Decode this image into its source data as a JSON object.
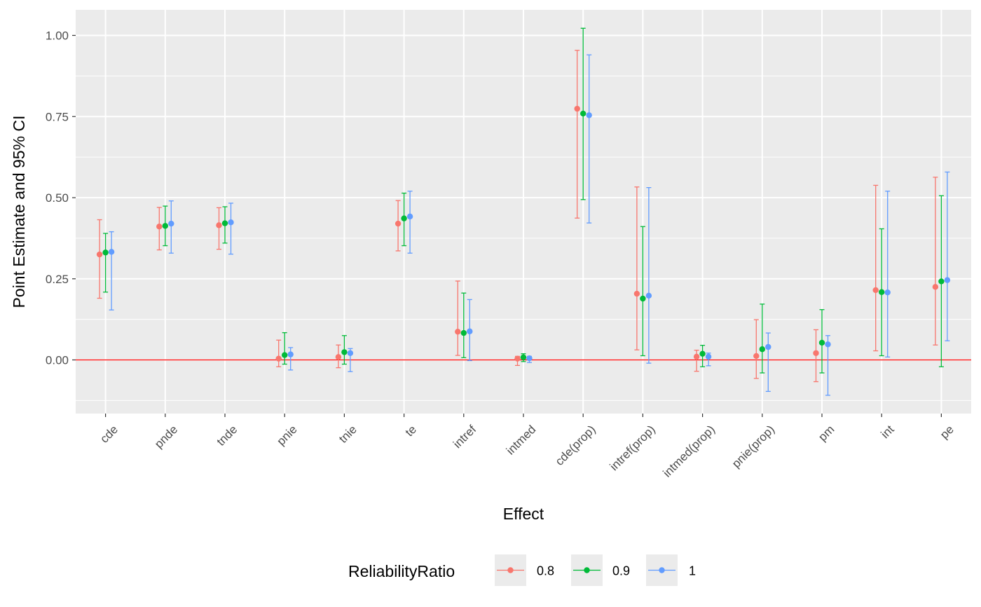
{
  "chart_data": {
    "type": "scatter",
    "subtype": "point-errorbar",
    "xlabel": "Effect",
    "ylabel": "Point Estimate and 95% CI",
    "categories": [
      "cde",
      "pnde",
      "tnde",
      "pnie",
      "tnie",
      "te",
      "intref",
      "intmed",
      "cde(prop)",
      "intref(prop)",
      "intmed(prop)",
      "pnie(prop)",
      "pm",
      "int",
      "pe"
    ],
    "ylim": [
      -0.16,
      1.08
    ],
    "yticks": [
      0.0,
      0.25,
      0.5,
      0.75,
      1.0
    ],
    "ytick_labels": [
      "0.00",
      "0.25",
      "0.50",
      "0.75",
      "1.00"
    ],
    "reference_line": {
      "y": 0,
      "color": "#ff0000"
    },
    "grid": true,
    "panel_background": "#ebebeb",
    "legend": {
      "title": "ReliabilityRatio",
      "position": "bottom"
    },
    "series": [
      {
        "name": "0.8",
        "color": "#f8766d",
        "estimate": [
          0.325,
          0.411,
          0.415,
          0.004,
          0.009,
          0.42,
          0.087,
          0.004,
          0.774,
          0.204,
          0.01,
          0.012,
          0.021,
          0.215,
          0.225
        ],
        "lower": [
          0.19,
          0.339,
          0.341,
          -0.021,
          -0.024,
          0.336,
          0.014,
          -0.017,
          0.437,
          0.031,
          -0.035,
          -0.057,
          -0.067,
          0.028,
          0.046
        ],
        "upper": [
          0.432,
          0.47,
          0.469,
          0.061,
          0.046,
          0.491,
          0.243,
          0.011,
          0.954,
          0.533,
          0.03,
          0.124,
          0.093,
          0.538,
          0.563
        ]
      },
      {
        "name": "0.9",
        "color": "#00ba38",
        "estimate": [
          0.331,
          0.413,
          0.421,
          0.015,
          0.024,
          0.436,
          0.083,
          0.008,
          0.759,
          0.189,
          0.019,
          0.033,
          0.053,
          0.209,
          0.242
        ],
        "lower": [
          0.209,
          0.352,
          0.36,
          -0.013,
          -0.013,
          0.352,
          0.007,
          -0.005,
          0.494,
          0.013,
          -0.021,
          -0.04,
          -0.04,
          0.013,
          -0.021
        ],
        "upper": [
          0.39,
          0.474,
          0.472,
          0.084,
          0.075,
          0.514,
          0.206,
          0.019,
          1.022,
          0.411,
          0.045,
          0.172,
          0.155,
          0.404,
          0.506
        ]
      },
      {
        "name": "1",
        "color": "#619cff",
        "estimate": [
          0.333,
          0.42,
          0.424,
          0.017,
          0.021,
          0.442,
          0.088,
          0.005,
          0.754,
          0.198,
          0.01,
          0.04,
          0.048,
          0.208,
          0.246
        ],
        "lower": [
          0.154,
          0.329,
          0.326,
          -0.031,
          -0.036,
          0.329,
          -0.002,
          -0.008,
          0.422,
          -0.01,
          -0.018,
          -0.097,
          -0.109,
          0.009,
          0.059
        ],
        "upper": [
          0.395,
          0.49,
          0.483,
          0.038,
          0.035,
          0.52,
          0.186,
          0.011,
          0.94,
          0.531,
          0.021,
          0.083,
          0.075,
          0.52,
          0.579
        ]
      }
    ]
  }
}
